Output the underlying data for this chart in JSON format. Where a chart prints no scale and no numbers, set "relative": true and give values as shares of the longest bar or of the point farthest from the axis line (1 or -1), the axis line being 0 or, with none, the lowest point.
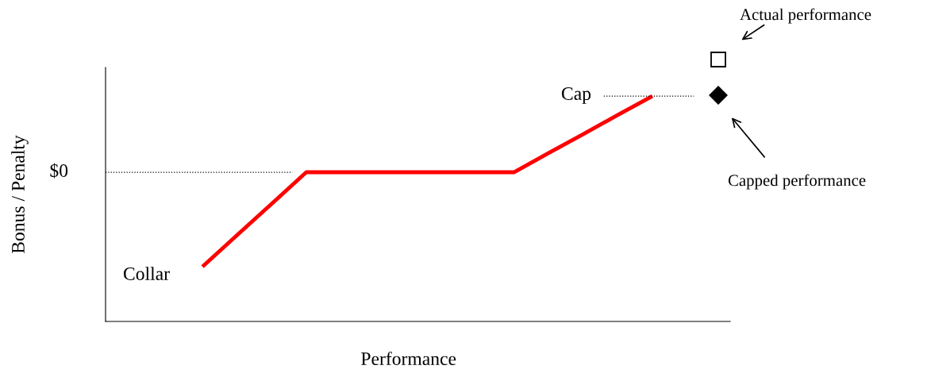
{
  "chart_data": {
    "type": "line",
    "relative": true,
    "xlabel": "Performance",
    "categories": [
      null,
      null,
      null,
      null,
      null,
      null,
      null,
      null,
      null,
      null,
      null,
      null,
      null,
      null
    ],
    "series": [
      {
        "color": "#ff0000",
        "values": [
          0.243,
          0.383,
          0.522,
          0.662,
          0.662,
          0.662,
          0.662,
          0.662,
          0.662,
          0.662,
          0.747,
          0.831,
          0.916,
          1.0
        ]
      }
    ],
    "ref_lines": [
      {
        "axis": "y",
        "value": 0.662,
        "color": "#000000",
        "line_style": "dotted"
      },
      {
        "axis": "y",
        "value": 1.0,
        "color": "#000000",
        "line_style": "dotted"
      }
    ],
    "annotations": [
      "$0",
      "Cap",
      "Collar",
      "Actual performance",
      "Capped performance",
      "Bonus / Penalty"
    ]
  }
}
